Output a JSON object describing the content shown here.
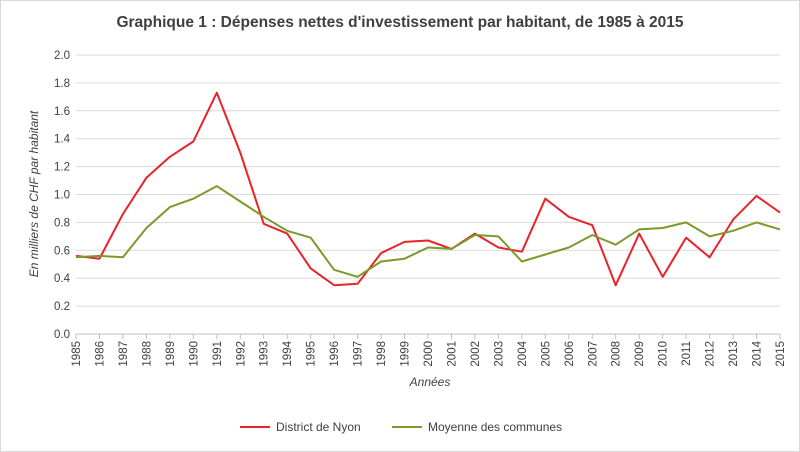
{
  "chart_data": {
    "type": "line",
    "title": "Graphique 1 : Dépenses nettes d'investissement par habitant, de 1985 à 2015",
    "xlabel": "Années",
    "ylabel": "En milliers de CHF par habitant",
    "ylim": [
      0,
      2.0
    ],
    "yticks": [
      "0.0",
      "0.2",
      "0.4",
      "0.6",
      "0.8",
      "1.0",
      "1.2",
      "1.4",
      "1.6",
      "1.8",
      "2.0"
    ],
    "categories": [
      "1985",
      "1986",
      "1987",
      "1988",
      "1989",
      "1990",
      "1991",
      "1992",
      "1993",
      "1994",
      "1995",
      "1996",
      "1997",
      "1998",
      "1999",
      "2000",
      "2001",
      "2002",
      "2003",
      "2004",
      "2005",
      "2006",
      "2007",
      "2008",
      "2009",
      "2010",
      "2011",
      "2012",
      "2013",
      "2014",
      "2015"
    ],
    "grid": true,
    "legend_position": "bottom",
    "series": [
      {
        "name": "District de Nyon",
        "color": "#e8232a",
        "values": [
          0.56,
          0.54,
          0.86,
          1.12,
          1.27,
          1.38,
          1.73,
          1.3,
          0.79,
          0.72,
          0.47,
          0.35,
          0.36,
          0.58,
          0.66,
          0.67,
          0.61,
          0.72,
          0.62,
          0.59,
          0.97,
          0.84,
          0.78,
          0.35,
          0.72,
          0.41,
          0.69,
          0.55,
          0.82,
          0.99,
          0.87
        ]
      },
      {
        "name": "Moyenne des communes",
        "color": "#7a9a2a",
        "values": [
          0.55,
          0.56,
          0.55,
          0.76,
          0.91,
          0.97,
          1.06,
          0.95,
          0.84,
          0.74,
          0.69,
          0.46,
          0.41,
          0.52,
          0.54,
          0.62,
          0.61,
          0.71,
          0.7,
          0.52,
          0.57,
          0.62,
          0.71,
          0.64,
          0.75,
          0.76,
          0.8,
          0.7,
          0.74,
          0.8,
          0.75
        ]
      }
    ]
  }
}
